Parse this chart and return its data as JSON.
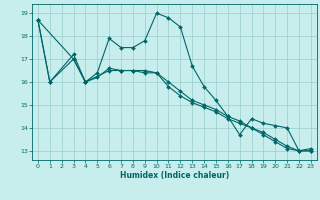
{
  "xlabel": "Humidex (Indice chaleur)",
  "bg_color": "#c8eded",
  "line_color": "#006666",
  "grid_color": "#99cccc",
  "xlim": [
    -0.5,
    23.5
  ],
  "ylim": [
    12.6,
    19.4
  ],
  "yticks": [
    13,
    14,
    15,
    16,
    17,
    18,
    19
  ],
  "xticks": [
    0,
    1,
    2,
    3,
    4,
    5,
    6,
    7,
    8,
    9,
    10,
    11,
    12,
    13,
    14,
    15,
    16,
    17,
    18,
    19,
    20,
    21,
    22,
    23
  ],
  "line1_x": [
    0,
    1,
    3,
    4,
    5,
    6,
    7,
    8,
    9,
    10,
    11,
    12,
    13,
    14,
    15,
    16,
    17,
    18,
    19,
    20,
    21,
    22,
    23
  ],
  "line1_y": [
    18.7,
    16.0,
    17.2,
    16.0,
    16.4,
    17.9,
    17.5,
    17.5,
    17.8,
    19.0,
    18.8,
    18.4,
    16.7,
    15.8,
    15.2,
    14.5,
    13.7,
    14.4,
    14.2,
    14.1,
    14.0,
    13.0,
    13.1
  ],
  "line2_x": [
    0,
    1,
    3,
    4,
    6,
    7,
    8,
    9,
    10,
    11,
    12,
    13,
    14,
    15,
    16,
    17,
    18,
    19,
    20,
    21,
    22,
    23
  ],
  "line2_y": [
    18.7,
    16.0,
    17.0,
    16.0,
    16.5,
    16.5,
    16.5,
    16.4,
    16.4,
    16.0,
    15.6,
    15.2,
    15.0,
    14.8,
    14.5,
    14.3,
    14.0,
    13.8,
    13.5,
    13.2,
    13.0,
    13.0
  ],
  "line3_x": [
    0,
    3,
    4,
    5,
    6,
    7,
    8,
    9,
    10,
    11,
    12,
    13,
    14,
    15,
    16,
    17,
    18,
    19,
    20,
    21,
    22,
    23
  ],
  "line3_y": [
    18.7,
    17.0,
    16.0,
    16.2,
    16.6,
    16.5,
    16.5,
    16.5,
    16.4,
    15.8,
    15.4,
    15.1,
    14.9,
    14.7,
    14.4,
    14.2,
    14.0,
    13.7,
    13.4,
    13.1,
    13.0,
    13.0
  ]
}
